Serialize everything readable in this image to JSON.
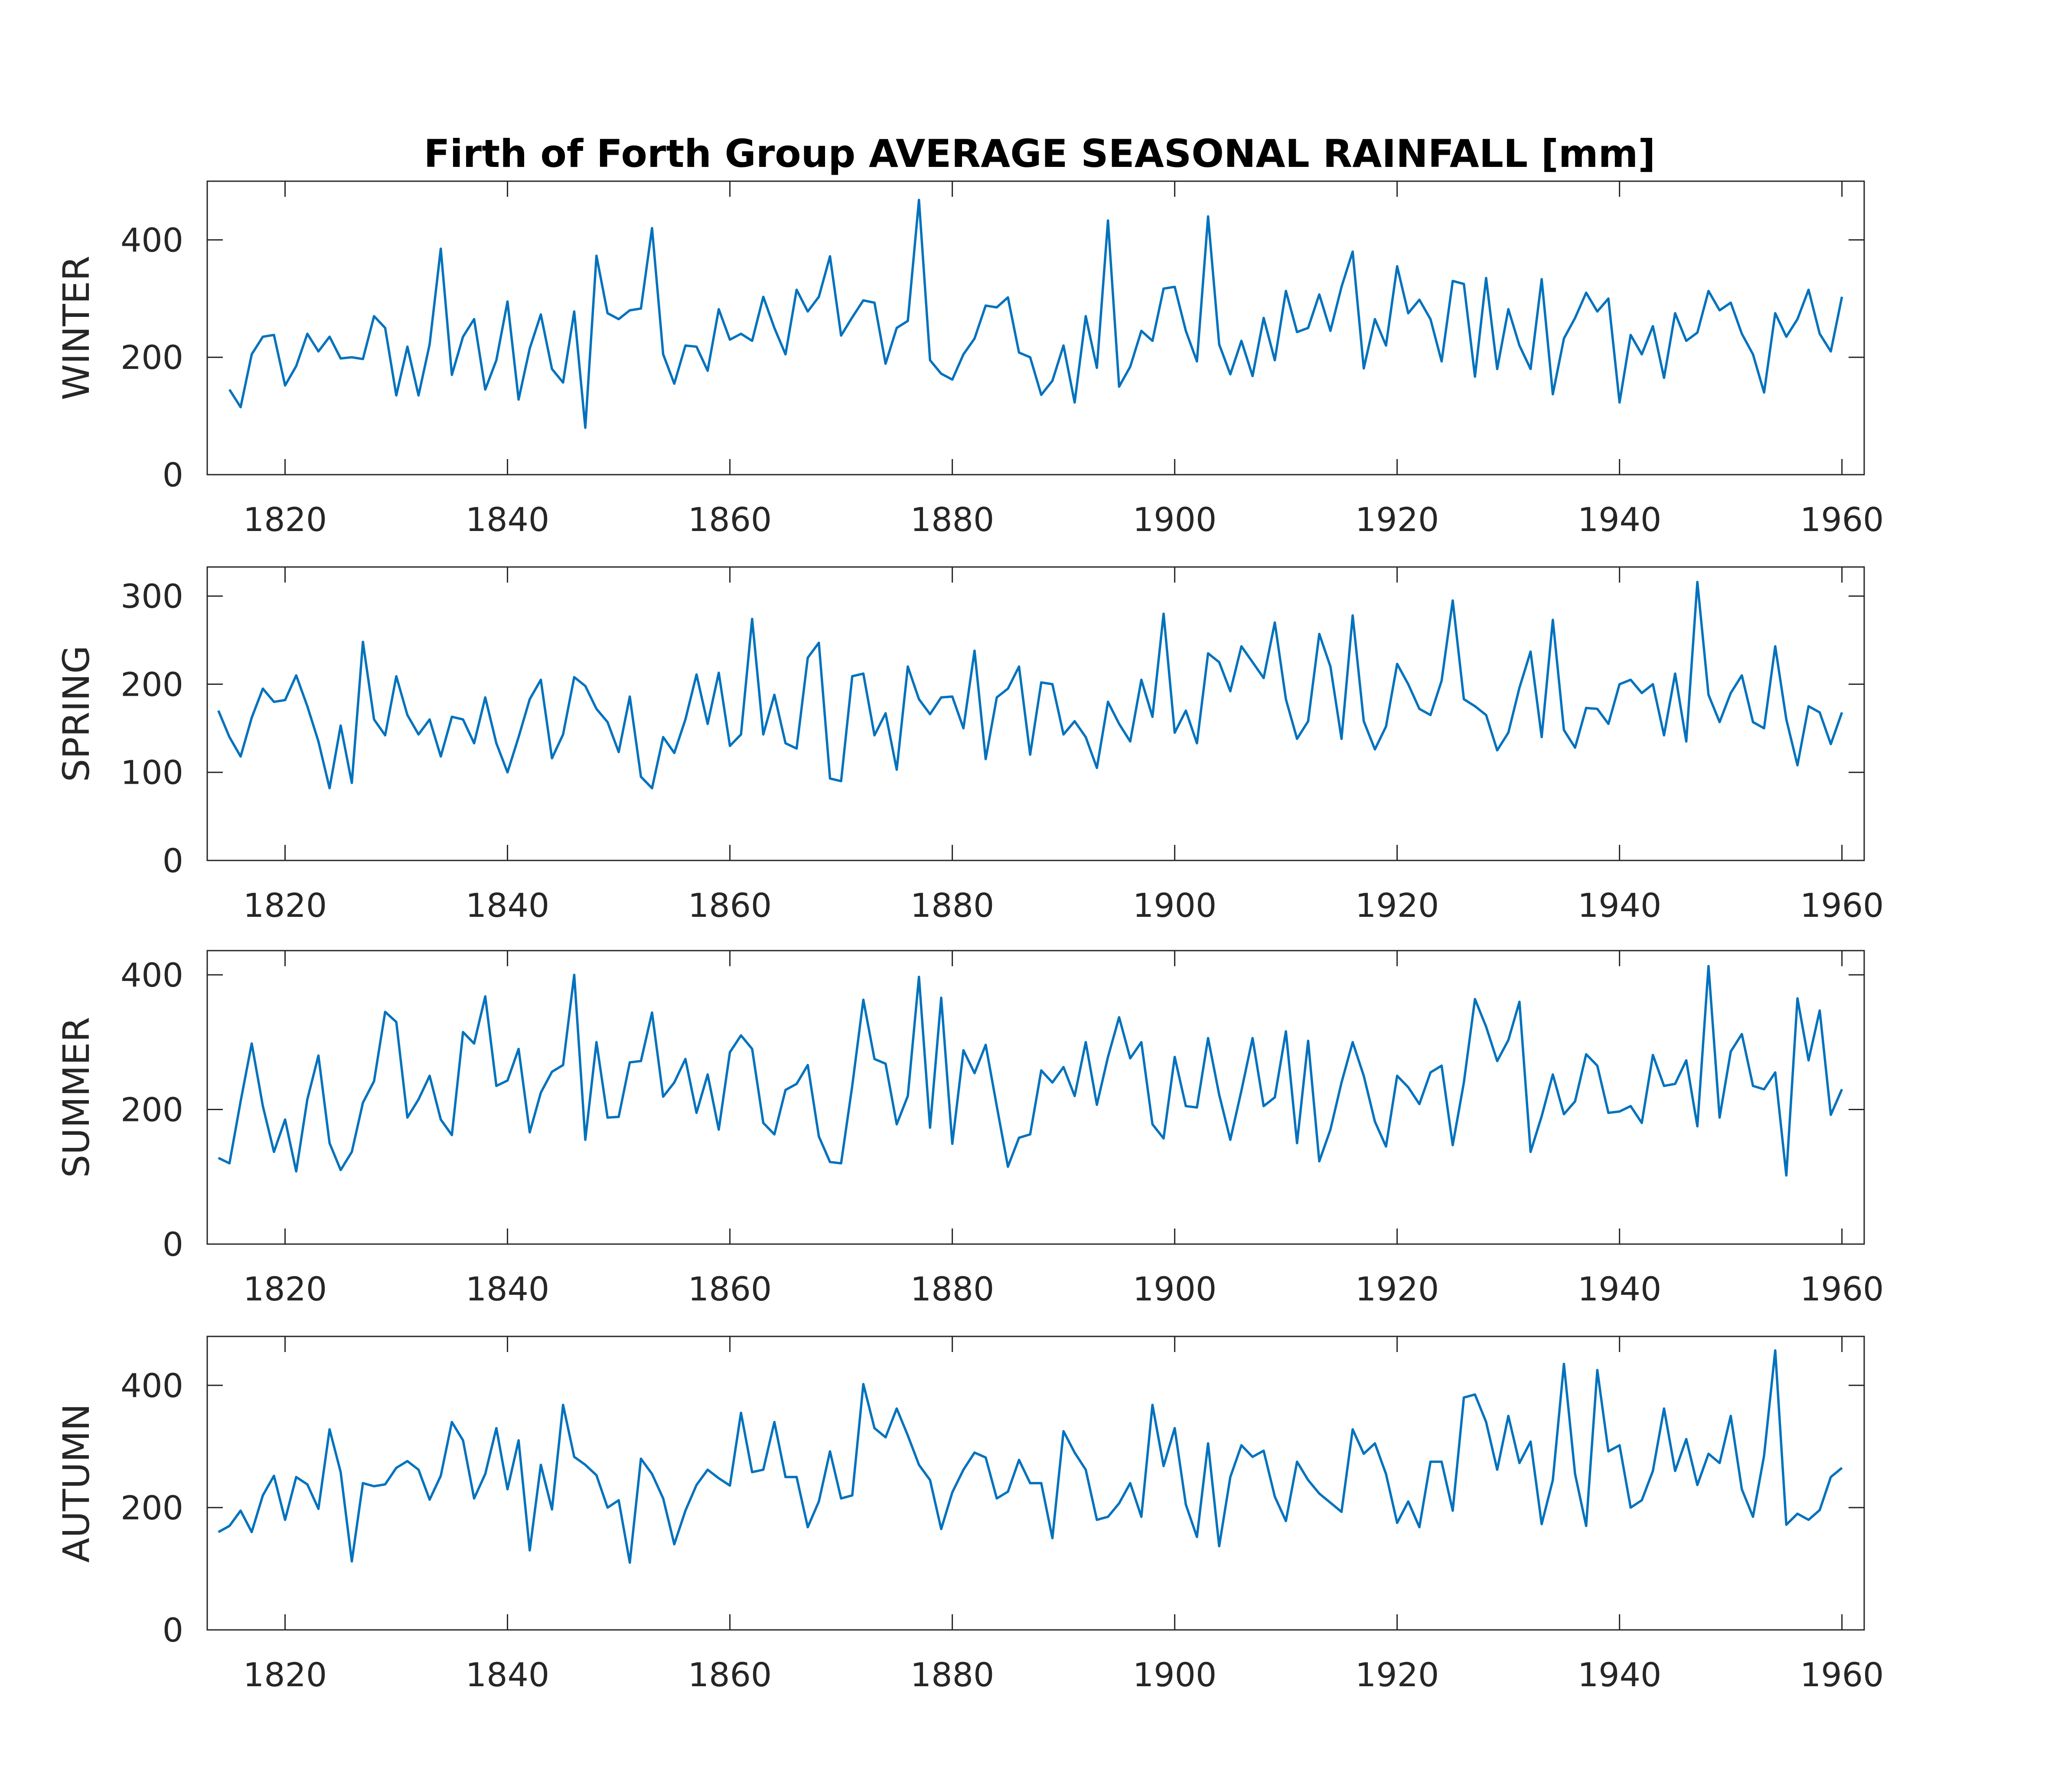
{
  "title": "Firth of Forth Group AVERAGE SEASONAL RAINFALL [mm]",
  "colors": {
    "line": "#0072BD",
    "axis": "#262626",
    "background": "#ffffff"
  },
  "chart_data": [
    {
      "type": "line",
      "ylabel": "WINTER",
      "xlim": [
        1813,
        1962
      ],
      "ylim": [
        0,
        500
      ],
      "xticks": [
        1820,
        1840,
        1860,
        1880,
        1900,
        1920,
        1940,
        1960
      ],
      "yticks": [
        0,
        200,
        400
      ],
      "x_start": 1815,
      "values": [
        145,
        115,
        205,
        235,
        238,
        152,
        185,
        240,
        210,
        235,
        198,
        200,
        197,
        270,
        250,
        135,
        218,
        135,
        222,
        385,
        170,
        235,
        265,
        145,
        195,
        295,
        128,
        215,
        273,
        180,
        157,
        278,
        80,
        373,
        275,
        265,
        280,
        283,
        420,
        205,
        155,
        220,
        218,
        177,
        282,
        230,
        240,
        228,
        303,
        250,
        205,
        315,
        278,
        303,
        372,
        237,
        268,
        297,
        293,
        189,
        250,
        262,
        468,
        195,
        172,
        162,
        205,
        232,
        288,
        285,
        302,
        208,
        200,
        136,
        160,
        220,
        123,
        270,
        182,
        433,
        150,
        184,
        245,
        228,
        317,
        320,
        245,
        193,
        440,
        222,
        171,
        228,
        168,
        267,
        195,
        313,
        243,
        250,
        307,
        245,
        320,
        380,
        181,
        265,
        220,
        355,
        275,
        298,
        265,
        193,
        330,
        325,
        167,
        335,
        180,
        282,
        220,
        180,
        333,
        137,
        232,
        267,
        310,
        278,
        300,
        123,
        238,
        205,
        253,
        165,
        275,
        228,
        242,
        313,
        280,
        293,
        240,
        205,
        140,
        275,
        235,
        265,
        315,
        240,
        210,
        303
      ]
    },
    {
      "type": "line",
      "ylabel": "SPRING",
      "xlim": [
        1813,
        1962
      ],
      "ylim": [
        0,
        333
      ],
      "xticks": [
        1820,
        1840,
        1860,
        1880,
        1900,
        1920,
        1940,
        1960
      ],
      "yticks": [
        0,
        100,
        200,
        300
      ],
      "x_start": 1814,
      "values": [
        170,
        140,
        118,
        162,
        195,
        180,
        182,
        210,
        175,
        135,
        82,
        153,
        88,
        248,
        160,
        142,
        209,
        165,
        143,
        160,
        118,
        163,
        160,
        133,
        185,
        133,
        100,
        140,
        183,
        205,
        116,
        143,
        208,
        198,
        172,
        157,
        123,
        186,
        95,
        82,
        140,
        122,
        160,
        211,
        155,
        213,
        130,
        143,
        274,
        143,
        188,
        133,
        127,
        230,
        247,
        93,
        90,
        209,
        212,
        142,
        167,
        103,
        220,
        183,
        166,
        185,
        186,
        150,
        238,
        115,
        185,
        195,
        220,
        120,
        202,
        200,
        143,
        158,
        140,
        105,
        180,
        155,
        135,
        205,
        163,
        280,
        145,
        170,
        133,
        235,
        225,
        192,
        243,
        225,
        207,
        270,
        183,
        138,
        158,
        257,
        220,
        138,
        278,
        158,
        126,
        152,
        223,
        200,
        172,
        165,
        204,
        295,
        183,
        175,
        165,
        125,
        145,
        196,
        237,
        140,
        273,
        148,
        128,
        173,
        172,
        155,
        200,
        205,
        190,
        200,
        142,
        212,
        135,
        316,
        188,
        157,
        190,
        210,
        157,
        150,
        243,
        160,
        108,
        175,
        168,
        132,
        168
      ]
    },
    {
      "type": "line",
      "ylabel": "SUMMER",
      "xlim": [
        1813,
        1962
      ],
      "ylim": [
        0,
        436
      ],
      "xticks": [
        1820,
        1840,
        1860,
        1880,
        1900,
        1920,
        1940,
        1960
      ],
      "yticks": [
        0,
        200,
        400
      ],
      "x_start": 1814,
      "values": [
        128,
        120,
        212,
        298,
        205,
        137,
        185,
        108,
        215,
        280,
        150,
        110,
        137,
        210,
        242,
        345,
        330,
        188,
        215,
        250,
        185,
        162,
        315,
        298,
        368,
        235,
        243,
        290,
        166,
        225,
        256,
        266,
        400,
        155,
        300,
        188,
        189,
        270,
        272,
        344,
        219,
        240,
        275,
        195,
        252,
        170,
        285,
        310,
        290,
        180,
        163,
        229,
        238,
        266,
        160,
        122,
        120,
        235,
        363,
        275,
        268,
        178,
        220,
        397,
        173,
        366,
        149,
        288,
        254,
        296,
        205,
        115,
        158,
        163,
        258,
        240,
        263,
        220,
        300,
        207,
        278,
        337,
        276,
        300,
        178,
        157,
        278,
        205,
        203,
        306,
        222,
        155,
        228,
        306,
        205,
        218,
        316,
        150,
        302,
        123,
        170,
        240,
        300,
        250,
        182,
        145,
        250,
        233,
        208,
        255,
        265,
        147,
        240,
        364,
        323,
        272,
        303,
        360,
        137,
        190,
        252,
        193,
        212,
        282,
        265,
        195,
        197,
        205,
        180,
        281,
        235,
        238,
        273,
        175,
        413,
        188,
        286,
        312,
        235,
        230,
        255,
        102,
        365,
        273,
        347,
        192,
        230
      ]
    },
    {
      "type": "line",
      "ylabel": "AUTUMN",
      "xlim": [
        1813,
        1962
      ],
      "ylim": [
        0,
        480
      ],
      "xticks": [
        1820,
        1840,
        1860,
        1880,
        1900,
        1920,
        1940,
        1960
      ],
      "yticks": [
        0,
        200,
        400
      ],
      "x_start": 1814,
      "values": [
        160,
        170,
        195,
        160,
        220,
        252,
        180,
        250,
        238,
        198,
        328,
        258,
        112,
        240,
        235,
        238,
        265,
        276,
        262,
        213,
        252,
        340,
        310,
        215,
        255,
        330,
        230,
        310,
        130,
        270,
        197,
        368,
        283,
        270,
        253,
        200,
        212,
        110,
        280,
        255,
        215,
        140,
        195,
        237,
        262,
        248,
        236,
        355,
        258,
        262,
        340,
        250,
        250,
        168,
        210,
        292,
        215,
        220,
        402,
        330,
        315,
        362,
        318,
        270,
        245,
        165,
        225,
        262,
        290,
        282,
        215,
        226,
        278,
        240,
        240,
        150,
        325,
        290,
        262,
        180,
        185,
        207,
        240,
        185,
        368,
        268,
        330,
        205,
        152,
        305,
        137,
        250,
        302,
        283,
        293,
        218,
        178,
        275,
        245,
        223,
        208,
        193,
        328,
        288,
        305,
        255,
        175,
        210,
        168,
        275,
        275,
        195,
        380,
        385,
        340,
        262,
        350,
        273,
        308,
        173,
        245,
        435,
        255,
        170,
        425,
        292,
        302,
        200,
        212,
        260,
        362,
        260,
        312,
        237,
        288,
        273,
        350,
        230,
        185,
        285,
        457,
        172,
        190,
        180,
        196,
        250,
        265
      ]
    }
  ]
}
